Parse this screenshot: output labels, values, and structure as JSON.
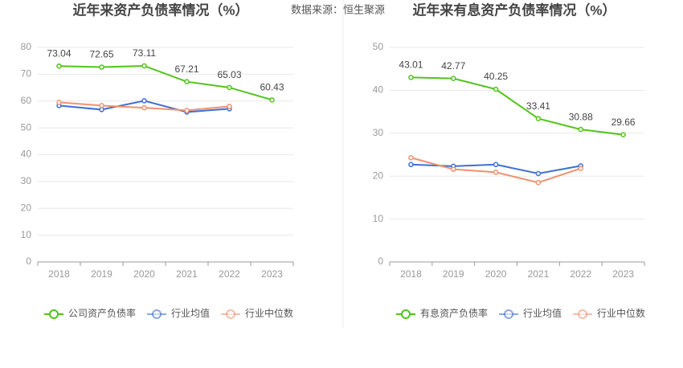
{
  "source": "数据来源：恒生聚源",
  "chart_data": [
    {
      "type": "line",
      "title": "近年来资产负债率情况（%）",
      "categories": [
        "2018",
        "2019",
        "2020",
        "2021",
        "2022",
        "2023"
      ],
      "ylim": [
        0,
        80
      ],
      "yticks": [
        0,
        10,
        20,
        30,
        40,
        50,
        60,
        70,
        80
      ],
      "grid": true,
      "legend": "bottom",
      "series": [
        {
          "name": "公司资产负债率",
          "color": "#52c41a",
          "data_labels": true,
          "values": [
            73.04,
            72.65,
            73.11,
            67.21,
            65.03,
            60.43
          ]
        },
        {
          "name": "行业均值",
          "color": "#3e6fd6",
          "values": [
            58.3,
            56.8,
            60.1,
            55.9,
            57.1,
            null
          ]
        },
        {
          "name": "行业中位数",
          "color": "#f2906f",
          "values": [
            59.5,
            58.3,
            57.5,
            56.5,
            58.0,
            null
          ]
        }
      ]
    },
    {
      "type": "line",
      "title": "近年来有息资产负债率情况（%）",
      "categories": [
        "2018",
        "2019",
        "2020",
        "2021",
        "2022",
        "2023"
      ],
      "ylim": [
        0,
        50
      ],
      "yticks": [
        0,
        10,
        20,
        30,
        40,
        50
      ],
      "grid": true,
      "legend": "bottom",
      "series": [
        {
          "name": "有息资产负债率",
          "color": "#52c41a",
          "data_labels": true,
          "values": [
            43.01,
            42.77,
            40.25,
            33.41,
            30.88,
            29.66
          ]
        },
        {
          "name": "行业均值",
          "color": "#3e6fd6",
          "values": [
            22.7,
            22.3,
            22.7,
            20.6,
            22.4,
            null
          ]
        },
        {
          "name": "行业中位数",
          "color": "#f2906f",
          "values": [
            24.3,
            21.6,
            20.9,
            18.5,
            21.8,
            null
          ]
        }
      ]
    }
  ]
}
